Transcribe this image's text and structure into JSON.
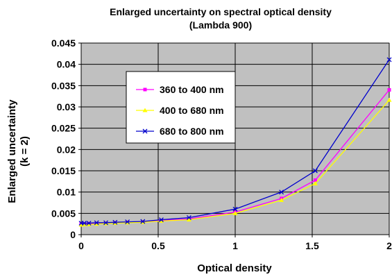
{
  "chart_data": {
    "type": "line",
    "title": "Enlarged uncertainty on spectral optical density",
    "subtitle": "(Lambda 900)",
    "xlabel": "Optical density",
    "ylabel_line1": "Enlarged uncertainty",
    "ylabel_line2": "(k = 2)",
    "xlim": [
      0,
      2
    ],
    "ylim": [
      0,
      0.045
    ],
    "xticks": [
      0,
      0.5,
      1,
      1.5,
      2
    ],
    "xtick_labels": [
      "0",
      "0.5",
      "1",
      "1.5",
      "2"
    ],
    "yticks": [
      0,
      0.005,
      0.01,
      0.015,
      0.02,
      0.025,
      0.03,
      0.035,
      0.04,
      0.045
    ],
    "ytick_labels": [
      "0",
      "0.005",
      "0.01",
      "0.015",
      "0.02",
      "0.025",
      "0.03",
      "0.035",
      "0.04",
      "0.045"
    ],
    "grid": true,
    "legend_position": "upper-left-center",
    "plot_background": "#c0c0c0",
    "x": [
      0,
      0.02,
      0.05,
      0.1,
      0.16,
      0.22,
      0.3,
      0.4,
      0.52,
      0.7,
      1,
      1.3,
      1.52,
      2
    ],
    "series": [
      {
        "name": "360  to 400 nm",
        "color": "#ff00ff",
        "marker": "square",
        "values": [
          0.0025,
          0.0025,
          0.0026,
          0.0026,
          0.0027,
          0.0028,
          0.0029,
          0.003,
          0.0033,
          0.0037,
          0.0053,
          0.0085,
          0.0128,
          0.034
        ]
      },
      {
        "name": "400 to  680 nm",
        "color": "#ffff00",
        "marker": "triangle",
        "values": [
          0.0023,
          0.0024,
          0.0024,
          0.0025,
          0.0026,
          0.0027,
          0.0028,
          0.0029,
          0.0032,
          0.0035,
          0.005,
          0.0081,
          0.012,
          0.0316
        ]
      },
      {
        "name": "680 to  800 nm",
        "color": "#0000cc",
        "marker": "x",
        "values": [
          0.0027,
          0.0027,
          0.0027,
          0.0028,
          0.0028,
          0.0029,
          0.003,
          0.0031,
          0.0035,
          0.004,
          0.006,
          0.01,
          0.015,
          0.0411
        ]
      }
    ]
  }
}
